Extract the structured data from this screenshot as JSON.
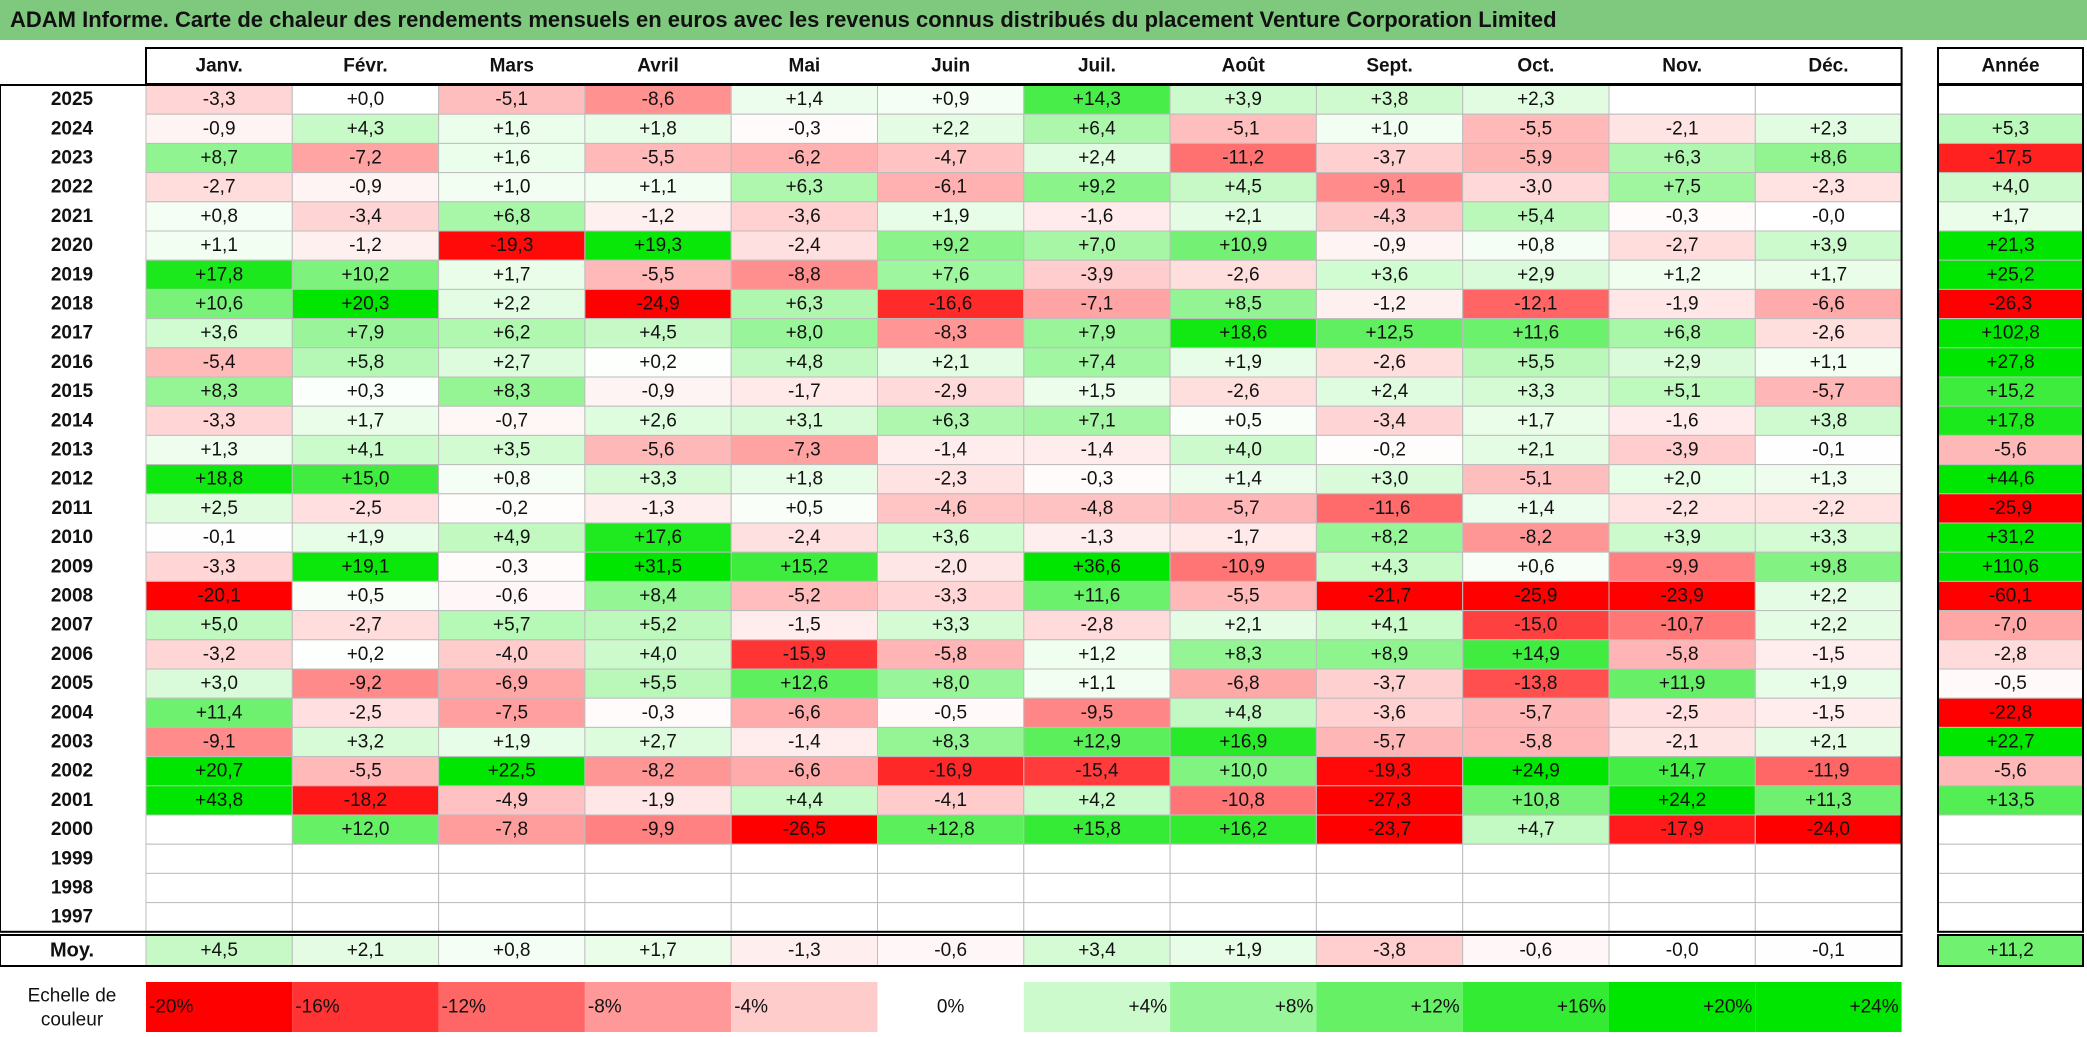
{
  "title": "ADAM Informe. Carte de chaleur des rendements mensuels en euros avec les revenus connus distribués du placement Venture Corporation Limited",
  "chart_data": {
    "type": "heatmap",
    "months": [
      "Janv.",
      "Févr.",
      "Mars",
      "Avril",
      "Mai",
      "Juin",
      "Juil.",
      "Août",
      "Sept.",
      "Oct.",
      "Nov.",
      "Déc."
    ],
    "year_header": "Année",
    "avg_label": "Moy.",
    "rows": [
      {
        "year": "2025",
        "values": [
          "-3,3",
          "+0,0",
          "-5,1",
          "-8,6",
          "+1,4",
          "+0,9",
          "+14,3",
          "+3,9",
          "+3,8",
          "+2,3",
          "",
          ""
        ],
        "annual": ""
      },
      {
        "year": "2024",
        "values": [
          "-0,9",
          "+4,3",
          "+1,6",
          "+1,8",
          "-0,3",
          "+2,2",
          "+6,4",
          "-5,1",
          "+1,0",
          "-5,5",
          "-2,1",
          "+2,3"
        ],
        "annual": "+5,3"
      },
      {
        "year": "2023",
        "values": [
          "+8,7",
          "-7,2",
          "+1,6",
          "-5,5",
          "-6,2",
          "-4,7",
          "+2,4",
          "-11,2",
          "-3,7",
          "-5,9",
          "+6,3",
          "+8,6"
        ],
        "annual": "-17,5"
      },
      {
        "year": "2022",
        "values": [
          "-2,7",
          "-0,9",
          "+1,0",
          "+1,1",
          "+6,3",
          "-6,1",
          "+9,2",
          "+4,5",
          "-9,1",
          "-3,0",
          "+7,5",
          "-2,3"
        ],
        "annual": "+4,0"
      },
      {
        "year": "2021",
        "values": [
          "+0,8",
          "-3,4",
          "+6,8",
          "-1,2",
          "-3,6",
          "+1,9",
          "-1,6",
          "+2,1",
          "-4,3",
          "+5,4",
          "-0,3",
          "-0,0"
        ],
        "annual": "+1,7"
      },
      {
        "year": "2020",
        "values": [
          "+1,1",
          "-1,2",
          "-19,3",
          "+19,3",
          "-2,4",
          "+9,2",
          "+7,0",
          "+10,9",
          "-0,9",
          "+0,8",
          "-2,7",
          "+3,9"
        ],
        "annual": "+21,3"
      },
      {
        "year": "2019",
        "values": [
          "+17,8",
          "+10,2",
          "+1,7",
          "-5,5",
          "-8,8",
          "+7,6",
          "-3,9",
          "-2,6",
          "+3,6",
          "+2,9",
          "+1,2",
          "+1,7"
        ],
        "annual": "+25,2"
      },
      {
        "year": "2018",
        "values": [
          "+10,6",
          "+20,3",
          "+2,2",
          "-24,9",
          "+6,3",
          "-16,6",
          "-7,1",
          "+8,5",
          "-1,2",
          "-12,1",
          "-1,9",
          "-6,6"
        ],
        "annual": "-26,3"
      },
      {
        "year": "2017",
        "values": [
          "+3,6",
          "+7,9",
          "+6,2",
          "+4,5",
          "+8,0",
          "-8,3",
          "+7,9",
          "+18,6",
          "+12,5",
          "+11,6",
          "+6,8",
          "-2,6"
        ],
        "annual": "+102,8"
      },
      {
        "year": "2016",
        "values": [
          "-5,4",
          "+5,8",
          "+2,7",
          "+0,2",
          "+4,8",
          "+2,1",
          "+7,4",
          "+1,9",
          "-2,6",
          "+5,5",
          "+2,9",
          "+1,1"
        ],
        "annual": "+27,8"
      },
      {
        "year": "2015",
        "values": [
          "+8,3",
          "+0,3",
          "+8,3",
          "-0,9",
          "-1,7",
          "-2,9",
          "+1,5",
          "-2,6",
          "+2,4",
          "+3,3",
          "+5,1",
          "-5,7"
        ],
        "annual": "+15,2"
      },
      {
        "year": "2014",
        "values": [
          "-3,3",
          "+1,7",
          "-0,7",
          "+2,6",
          "+3,1",
          "+6,3",
          "+7,1",
          "+0,5",
          "-3,4",
          "+1,7",
          "-1,6",
          "+3,8"
        ],
        "annual": "+17,8"
      },
      {
        "year": "2013",
        "values": [
          "+1,3",
          "+4,1",
          "+3,5",
          "-5,6",
          "-7,3",
          "-1,4",
          "-1,4",
          "+4,0",
          "-0,2",
          "+2,1",
          "-3,9",
          "-0,1"
        ],
        "annual": "-5,6"
      },
      {
        "year": "2012",
        "values": [
          "+18,8",
          "+15,0",
          "+0,8",
          "+3,3",
          "+1,8",
          "-2,3",
          "-0,3",
          "+1,4",
          "+3,0",
          "-5,1",
          "+2,0",
          "+1,3"
        ],
        "annual": "+44,6"
      },
      {
        "year": "2011",
        "values": [
          "+2,5",
          "-2,5",
          "-0,2",
          "-1,3",
          "+0,5",
          "-4,6",
          "-4,8",
          "-5,7",
          "-11,6",
          "+1,4",
          "-2,2",
          "-2,2"
        ],
        "annual": "-25,9"
      },
      {
        "year": "2010",
        "values": [
          "-0,1",
          "+1,9",
          "+4,9",
          "+17,6",
          "-2,4",
          "+3,6",
          "-1,3",
          "-1,7",
          "+8,2",
          "-8,2",
          "+3,9",
          "+3,3"
        ],
        "annual": "+31,2"
      },
      {
        "year": "2009",
        "values": [
          "-3,3",
          "+19,1",
          "-0,3",
          "+31,5",
          "+15,2",
          "-2,0",
          "+36,6",
          "-10,9",
          "+4,3",
          "+0,6",
          "-9,9",
          "+9,8"
        ],
        "annual": "+110,6"
      },
      {
        "year": "2008",
        "values": [
          "-20,1",
          "+0,5",
          "-0,6",
          "+8,4",
          "-5,2",
          "-3,3",
          "+11,6",
          "-5,5",
          "-21,7",
          "-25,9",
          "-23,9",
          "+2,2"
        ],
        "annual": "-60,1"
      },
      {
        "year": "2007",
        "values": [
          "+5,0",
          "-2,7",
          "+5,7",
          "+5,2",
          "-1,5",
          "+3,3",
          "-2,8",
          "+2,1",
          "+4,1",
          "-15,0",
          "-10,7",
          "+2,2"
        ],
        "annual": "-7,0"
      },
      {
        "year": "2006",
        "values": [
          "-3,2",
          "+0,2",
          "-4,0",
          "+4,0",
          "-15,9",
          "-5,8",
          "+1,2",
          "+8,3",
          "+8,9",
          "+14,9",
          "-5,8",
          "-1,5"
        ],
        "annual": "-2,8"
      },
      {
        "year": "2005",
        "values": [
          "+3,0",
          "-9,2",
          "-6,9",
          "+5,5",
          "+12,6",
          "+8,0",
          "+1,1",
          "-6,8",
          "-3,7",
          "-13,8",
          "+11,9",
          "+1,9"
        ],
        "annual": "-0,5"
      },
      {
        "year": "2004",
        "values": [
          "+11,4",
          "-2,5",
          "-7,5",
          "-0,3",
          "-6,6",
          "-0,5",
          "-9,5",
          "+4,8",
          "-3,6",
          "-5,7",
          "-2,5",
          "-1,5"
        ],
        "annual": "-22,8"
      },
      {
        "year": "2003",
        "values": [
          "-9,1",
          "+3,2",
          "+1,9",
          "+2,7",
          "-1,4",
          "+8,3",
          "+12,9",
          "+16,9",
          "-5,7",
          "-5,8",
          "-2,1",
          "+2,1"
        ],
        "annual": "+22,7"
      },
      {
        "year": "2002",
        "values": [
          "+20,7",
          "-5,5",
          "+22,5",
          "-8,2",
          "-6,6",
          "-16,9",
          "-15,4",
          "+10,0",
          "-19,3",
          "+24,9",
          "+14,7",
          "-11,9"
        ],
        "annual": "-5,6"
      },
      {
        "year": "2001",
        "values": [
          "+43,8",
          "-18,2",
          "-4,9",
          "-1,9",
          "+4,4",
          "-4,1",
          "+4,2",
          "-10,8",
          "-27,3",
          "+10,8",
          "+24,2",
          "+11,3"
        ],
        "annual": "+13,5"
      },
      {
        "year": "2000",
        "values": [
          "",
          "+12,0",
          "-7,8",
          "-9,9",
          "-26,5",
          "+12,8",
          "+15,8",
          "+16,2",
          "-23,7",
          "+4,7",
          "-17,9",
          "-24,0"
        ],
        "annual": ""
      },
      {
        "year": "1999",
        "values": [
          "",
          "",
          "",
          "",
          "",
          "",
          "",
          "",
          "",
          "",
          "",
          ""
        ],
        "annual": ""
      },
      {
        "year": "1998",
        "values": [
          "",
          "",
          "",
          "",
          "",
          "",
          "",
          "",
          "",
          "",
          "",
          ""
        ],
        "annual": ""
      },
      {
        "year": "1997",
        "values": [
          "",
          "",
          "",
          "",
          "",
          "",
          "",
          "",
          "",
          "",
          "",
          ""
        ],
        "annual": ""
      }
    ],
    "averages": [
      "+4,5",
      "+2,1",
      "+0,8",
      "+1,7",
      "-1,3",
      "-0,6",
      "+3,4",
      "+1,9",
      "-3,8",
      "-0,6",
      "-0,0",
      "-0,1"
    ],
    "annual_average": "+11,2",
    "scale_label": [
      "Echelle de",
      "couleur"
    ],
    "scale": [
      {
        "label": "-20%",
        "value": -20
      },
      {
        "label": "-16%",
        "value": -16
      },
      {
        "label": "-12%",
        "value": -12
      },
      {
        "label": "-8%",
        "value": -8
      },
      {
        "label": "-4%",
        "value": -4
      },
      {
        "label": "0%",
        "value": 0
      },
      {
        "label": "+4%",
        "value": 4
      },
      {
        "label": "+8%",
        "value": 8
      },
      {
        "label": "+12%",
        "value": 12
      },
      {
        "label": "+16%",
        "value": 16
      },
      {
        "label": "+20%",
        "value": 20
      },
      {
        "label": "+24%",
        "value": 24
      }
    ],
    "colors": {
      "negative": "#ff0000",
      "positive": "#00e600",
      "neutral": "#ffffff",
      "header_green": "#7fc97f"
    }
  }
}
